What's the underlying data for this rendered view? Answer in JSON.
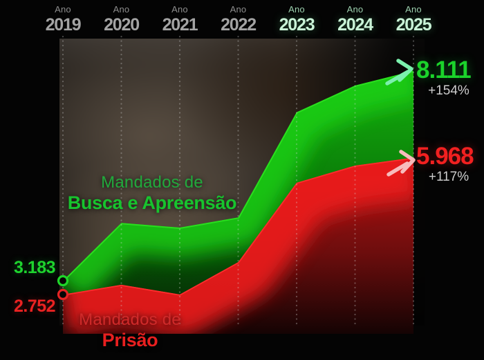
{
  "axis": {
    "year_prefix": "Ano",
    "years": [
      {
        "label": "2019",
        "highlight": false
      },
      {
        "label": "2020",
        "highlight": false
      },
      {
        "label": "2021",
        "highlight": false
      },
      {
        "label": "2022",
        "highlight": false
      },
      {
        "label": "2023",
        "highlight": true
      },
      {
        "label": "2024",
        "highlight": true
      },
      {
        "label": "2025",
        "highlight": true
      }
    ]
  },
  "chart_data": {
    "type": "area",
    "x": [
      2019,
      2020,
      2021,
      2022,
      2023,
      2024,
      2025
    ],
    "series": [
      {
        "name": "Mandados de Busca e Apreensão",
        "color": "#1dc72e",
        "values": [
          3183,
          4540,
          4430,
          4670,
          7139,
          7768,
          8111
        ],
        "start_label": "3.183",
        "end_label": "8.111",
        "end_delta": "+154%"
      },
      {
        "name": "Mandados de Prisão",
        "color": "#e62222",
        "values": [
          2752,
          2980,
          2752,
          3512,
          5376,
          5780,
          5968
        ],
        "start_label": "2.752",
        "end_label": "5.968",
        "end_delta": "+117%"
      }
    ],
    "title": "",
    "xlabel": "Ano",
    "ylabel": "",
    "ylim": [
      2500,
      8500
    ],
    "grid": "vertical-dotted",
    "legend": "inline-labels-on-areas"
  },
  "labels": {
    "green_line1": "Mandados de",
    "green_line2": "Busca e Apreensão",
    "red_line1": "Mandados de",
    "red_line2": "Prisão",
    "green_start_value": "3.183",
    "red_start_value": "2.752",
    "green_end_value": "8.111",
    "green_end_pct": "+154%",
    "red_end_value": "5.968",
    "red_end_pct": "+117%"
  },
  "colors": {
    "green_accent": "#1dc72e",
    "red_accent": "#e62222",
    "green_arrow": "#7bf0ad",
    "red_arrow": "#f7bcbc",
    "year_muted": "#a3a3a3",
    "year_highlight": "#c9f3d7",
    "pct_text": "#cdcdcd",
    "background": "#040404"
  }
}
